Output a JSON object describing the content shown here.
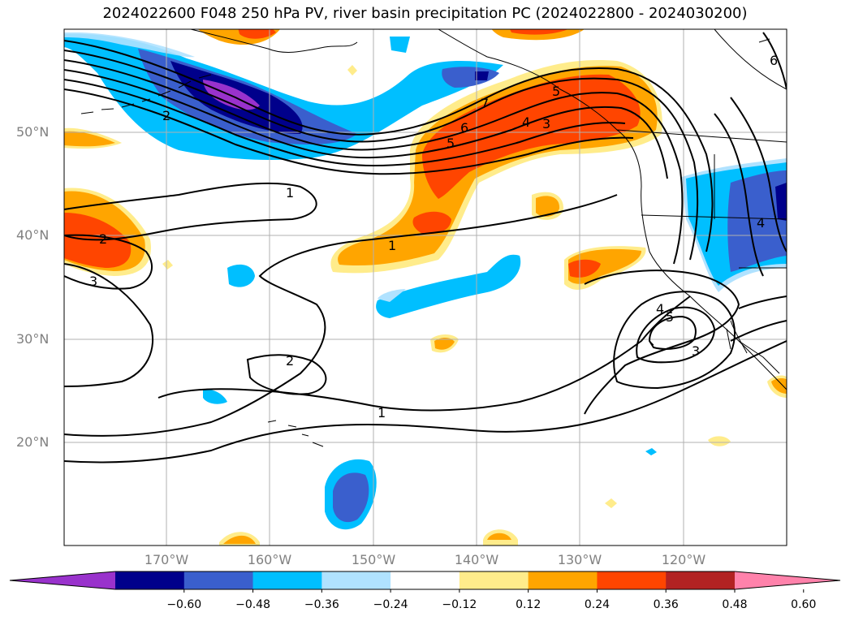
{
  "title": "2024022600 F048 250 hPa PV, river basin precipitation PC (2024022800 - 2024030200)",
  "lat_labels": [
    "50°N",
    "40°N",
    "30°N",
    "20°N"
  ],
  "lon_labels": [
    "170°W",
    "160°W",
    "150°W",
    "140°W",
    "130°W",
    "120°W"
  ],
  "colorbar": {
    "levels": [
      "−0.60",
      "−0.48",
      "−0.36",
      "−0.24",
      "−0.12",
      "0.12",
      "0.24",
      "0.36",
      "0.48",
      "0.60"
    ],
    "colors": [
      "#9932CC",
      "#00008B",
      "#3A5FCD",
      "#00BFFF",
      "#B0E2FF",
      "#FFFFFF",
      "#FFEC8B",
      "#FFA500",
      "#FF4500",
      "#B22222",
      "#FF82AB"
    ]
  },
  "contour_labels": [
    "1",
    "1",
    "1",
    "2",
    "2",
    "2",
    "3",
    "3",
    "3",
    "4",
    "5",
    "5",
    "6",
    "6",
    "7",
    "4",
    "5",
    "4"
  ],
  "colors": {
    "land_line": "#000000",
    "grid": "#b0b0b0",
    "contour": "#000000"
  }
}
